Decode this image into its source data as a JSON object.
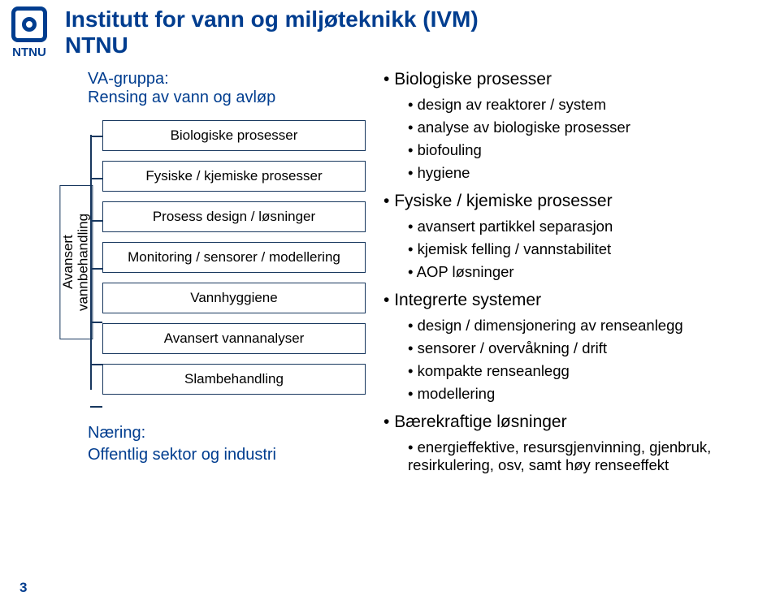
{
  "logo_text": "NTNU",
  "title_line1": "Institutt for vann og miljøteknikk (IVM)",
  "title_line2": "NTNU",
  "sub_line1": "VA-gruppa:",
  "sub_line2": "Rensing av vann og avløp",
  "vertical_label": "Avansert\nvannbehandling",
  "boxes": {
    "b0": "Biologiske prosesser",
    "b1": "Fysiske / kjemiske prosesser",
    "b2": "Prosess design / løsninger",
    "b3": "Monitoring / sensorer / modellering",
    "b4": "Vannhyggiene",
    "b5": "Avansert vannanalyser",
    "b6": "Slambehandling"
  },
  "footer_left_l1": "Næring:",
  "footer_left_l2": "Offentlig sektor og industri",
  "right": {
    "h1": "Biologiske prosesser",
    "h1_items": {
      "a": "design av reaktorer / system",
      "b": "analyse av biologiske prosesser",
      "c": "biofouling",
      "d": "hygiene"
    },
    "h2": "Fysiske / kjemiske prosesser",
    "h2_items": {
      "a": "avansert partikkel separasjon",
      "b": "kjemisk felling / vannstabilitet",
      "c": "AOP løsninger"
    },
    "h3": "Integrerte systemer",
    "h3_items": {
      "a": "design / dimensjonering av renseanlegg",
      "b": "sensorer / overvåkning / drift",
      "c": "kompakte renseanlegg",
      "d": "modellering"
    },
    "h4": "Bærekraftige løsninger",
    "h4_items": {
      "a": "energieffektive, resursgjenvinning, gjenbruk, resirkulering, osv, samt høy renseeffekt"
    }
  },
  "page_number": "3",
  "colors": {
    "brand": "#003d8f",
    "box_border": "#17375e",
    "text": "#000000",
    "bg": "#ffffff"
  }
}
